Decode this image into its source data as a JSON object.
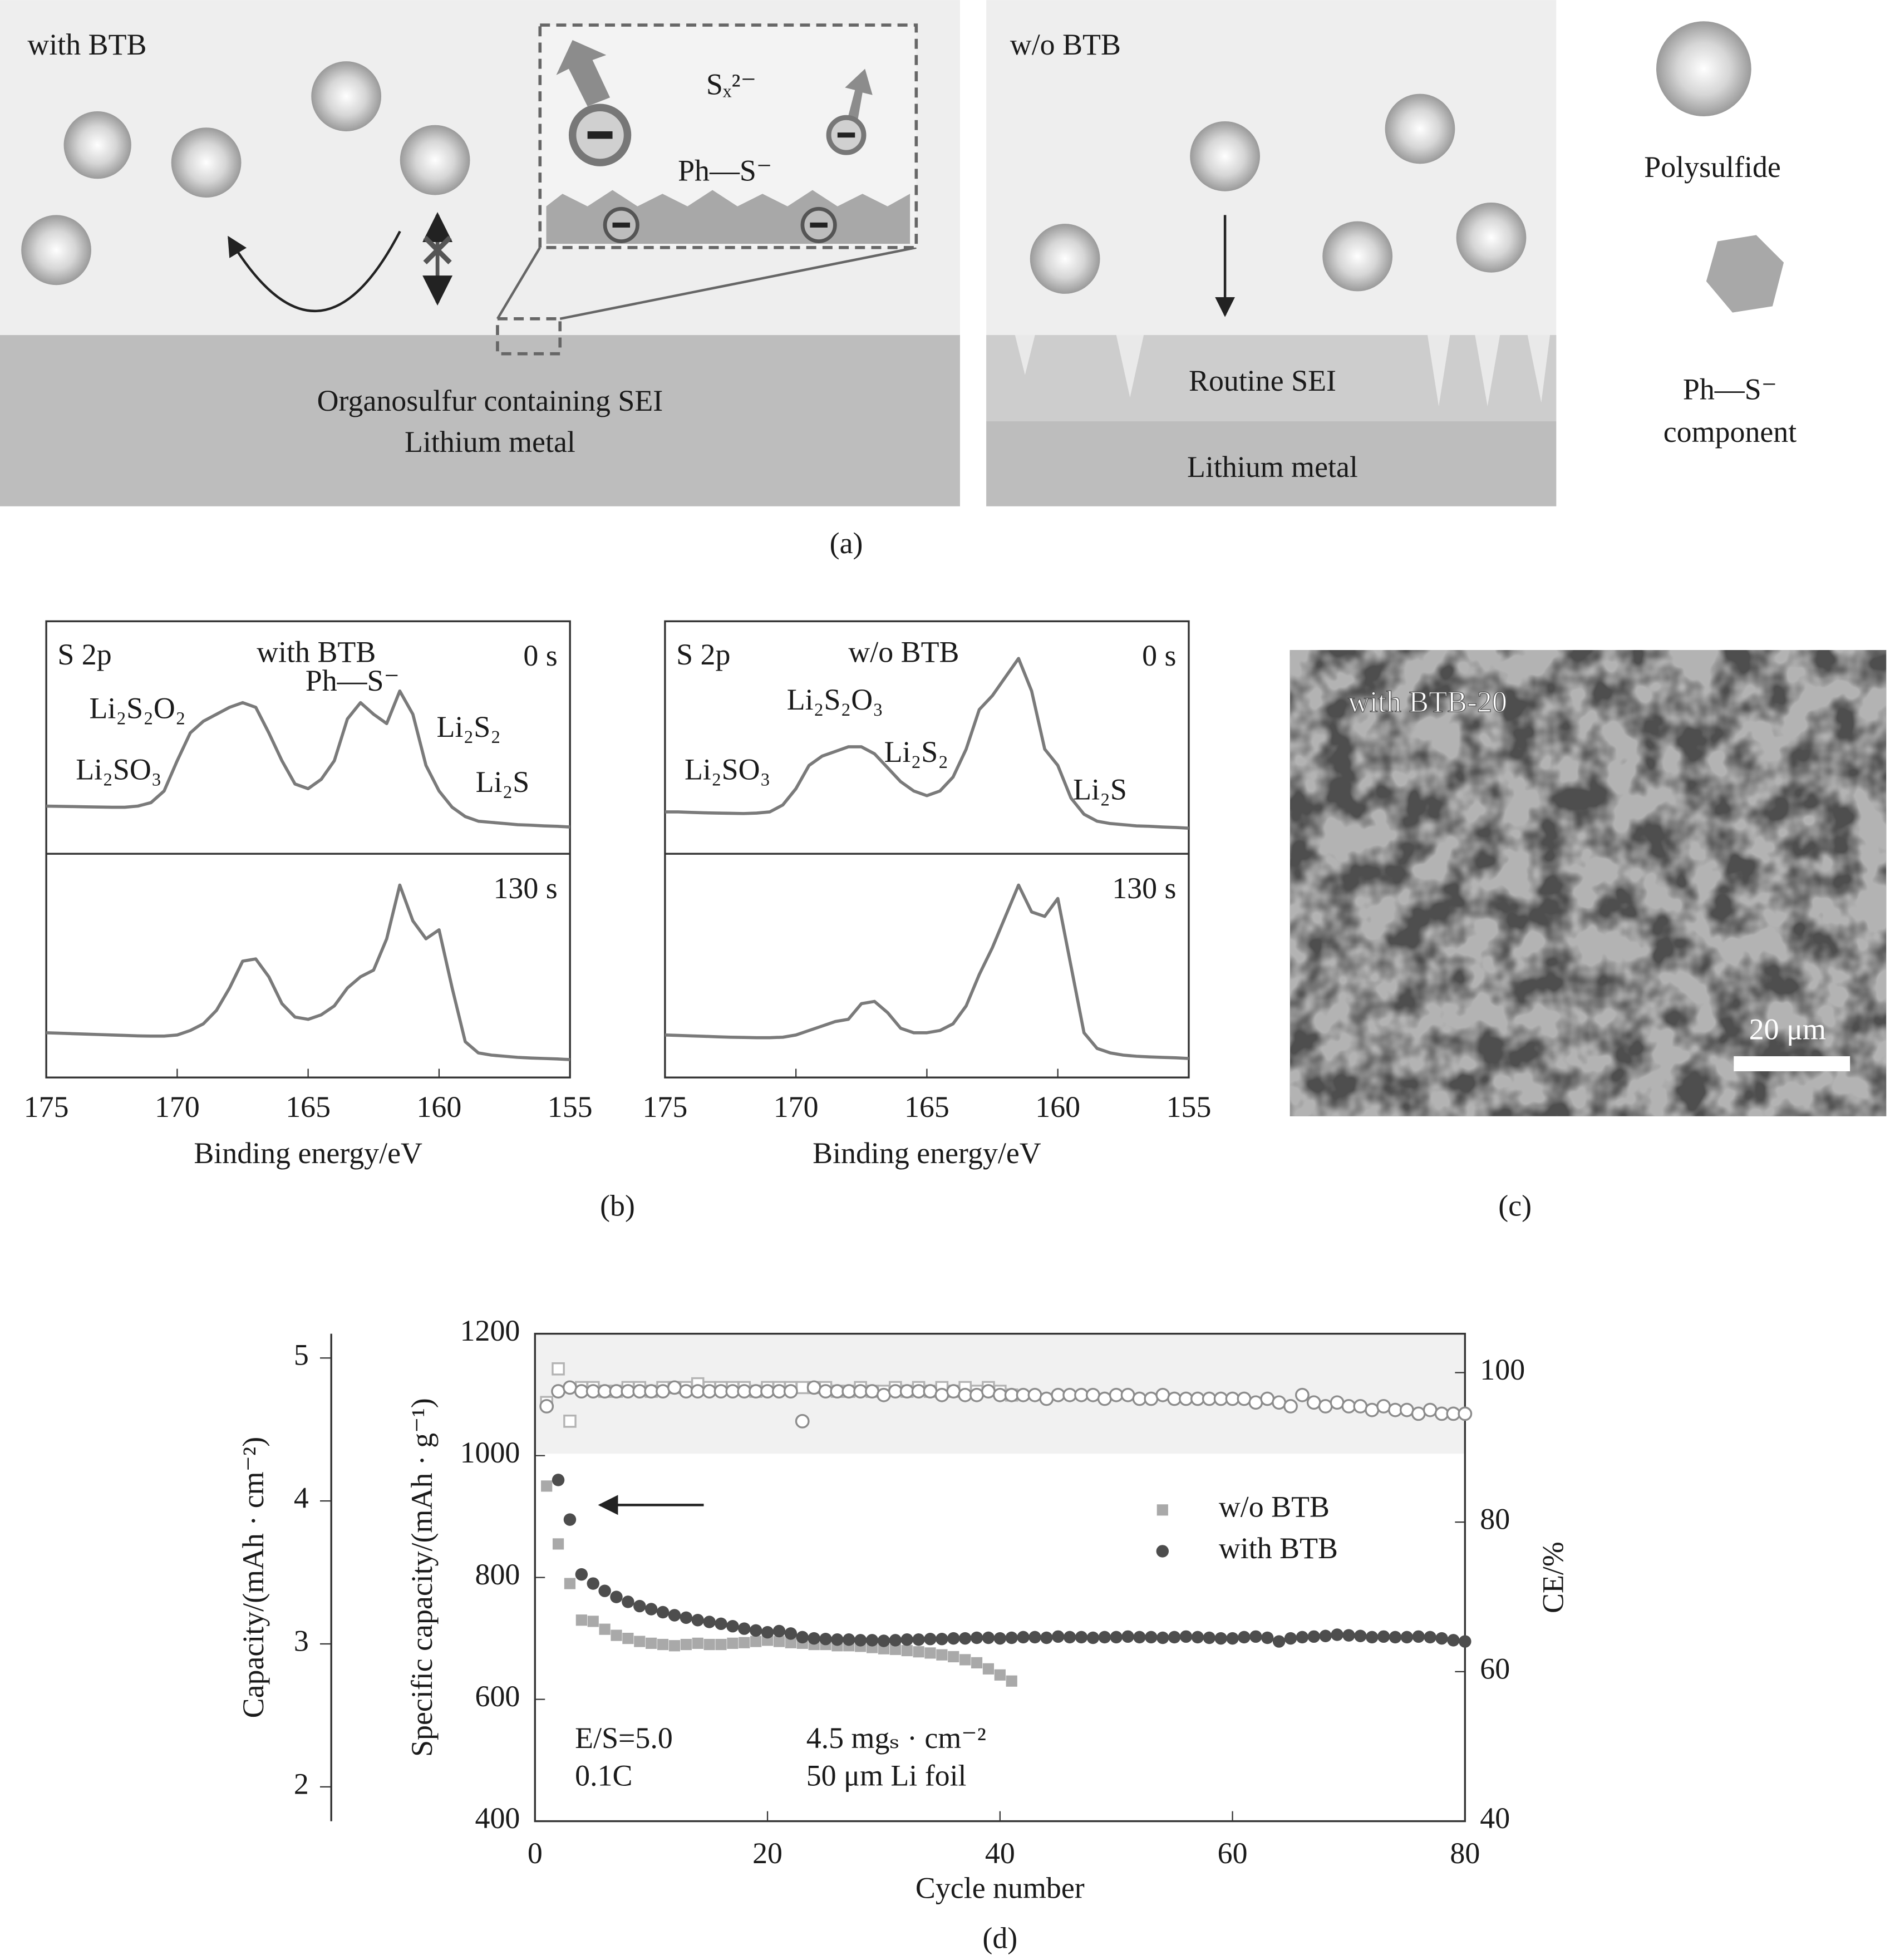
{
  "diagram": {
    "left_label": "with BTB",
    "inset_ion": "Sₓ²⁻",
    "inset_surface": "Ph—S⁻",
    "left_sei": "Organosulfur containing SEI",
    "left_metal": "Lithium metal",
    "right_label": "w/o BTB",
    "right_sei": "Routine SEI",
    "right_metal": "Lithium metal",
    "legend_polysulfide": "Polysulfide",
    "legend_component": [
      "Ph—S⁻",
      "component"
    ],
    "caption": "(a)"
  },
  "panel_b": {
    "caption": "(b)"
  },
  "image": {
    "label": "with BTB-20",
    "scale_bar": "20 μm",
    "caption": "(c)"
  },
  "chart_data": [
    {
      "type": "line",
      "title": "with BTB",
      "label": "S 2p",
      "xlabel": "Binding energy/eV",
      "xlim": [
        175,
        155
      ],
      "xticks": [
        175,
        170,
        165,
        160,
        155
      ],
      "ylim": [
        0,
        100
      ],
      "x": [
        175,
        174.5,
        174,
        173.5,
        173,
        172.5,
        172,
        171.5,
        171,
        170.5,
        170,
        169.5,
        169,
        168.5,
        168,
        167.5,
        167,
        166.5,
        166,
        165.5,
        165,
        164.5,
        164,
        163.5,
        163,
        162.5,
        162,
        161.5,
        161,
        160.5,
        160,
        159.5,
        159,
        158.5,
        158,
        157.5,
        157,
        156.5,
        156,
        155.5,
        155
      ],
      "series": [
        {
          "name": "0 s",
          "color": "#7a7a7a",
          "values": [
            20.5,
            20.4,
            20.3,
            20.2,
            20.1,
            20,
            20,
            20.5,
            22,
            27,
            40,
            52,
            57,
            60,
            63,
            65,
            63,
            52,
            40,
            30,
            28,
            32,
            40,
            58,
            65,
            60,
            56,
            70,
            60,
            38,
            27,
            20,
            16,
            14,
            13.5,
            13,
            12.5,
            12.3,
            12,
            11.8,
            11.5
          ]
        },
        {
          "name": "130 s",
          "color": "#7a7a7a",
          "values": [
            20,
            19.8,
            19.6,
            19.4,
            19.2,
            19,
            18.8,
            18.6,
            18.5,
            18.5,
            19,
            21,
            24,
            30,
            40,
            52,
            53,
            45,
            33,
            27,
            26,
            28,
            32,
            40,
            45,
            48,
            62,
            86,
            70,
            62,
            66,
            40,
            16,
            11,
            10,
            9.5,
            9,
            8.7,
            8.5,
            8.3,
            8
          ]
        }
      ],
      "annotations": [
        "Li₂S₂O₂",
        "Ph—S⁻",
        "Li₂S₂",
        "Li₂SO₃",
        "Li₂S"
      ]
    },
    {
      "type": "line",
      "title": "w/o BTB",
      "label": "S 2p",
      "xlabel": "Binding energy/eV",
      "xlim": [
        175,
        155
      ],
      "xticks": [
        175,
        170,
        165,
        160,
        155
      ],
      "ylim": [
        0,
        100
      ],
      "x": [
        175,
        174.5,
        174,
        173.5,
        173,
        172.5,
        172,
        171.5,
        171,
        170.5,
        170,
        169.5,
        169,
        168.5,
        168,
        167.5,
        167,
        166.5,
        166,
        165.5,
        165,
        164.5,
        164,
        163.5,
        163,
        162.5,
        162,
        161.5,
        161,
        160.5,
        160,
        159.5,
        159,
        158.5,
        158,
        157.5,
        157,
        156.5,
        156,
        155.5,
        155
      ],
      "series": [
        {
          "name": "0 s",
          "color": "#7a7a7a",
          "values": [
            18,
            18,
            17.8,
            17.6,
            17.5,
            17.4,
            17.3,
            17.5,
            18,
            21,
            28,
            38,
            42,
            44,
            46,
            46,
            43,
            37,
            31,
            27,
            25,
            27,
            33,
            45,
            62,
            68,
            76,
            84,
            70,
            45,
            38,
            24,
            17,
            14,
            13,
            12.5,
            12,
            11.8,
            11.5,
            11.3,
            11
          ]
        },
        {
          "name": "130 s",
          "color": "#7a7a7a",
          "values": [
            19,
            18.8,
            18.6,
            18.4,
            18.2,
            18,
            17.9,
            17.8,
            17.8,
            18,
            19,
            21,
            23,
            25,
            26,
            33,
            34,
            29,
            22,
            20,
            20,
            21,
            24,
            32,
            46,
            58,
            72,
            86,
            74,
            72,
            80,
            50,
            20,
            13,
            11,
            10,
            9.5,
            9.2,
            9,
            8.8,
            8.5
          ]
        }
      ],
      "annotations": [
        "Li₂S₂O₃",
        "Li₂S₂",
        "Li₂SO₃",
        "Li₂S"
      ]
    },
    {
      "type": "scatter",
      "xlabel": "Cycle number",
      "ylabel": "Specific capacity/(mAh · g⁻¹)",
      "y2label": "CE/%",
      "y3label": "Capacity/(mAh · cm⁻²)",
      "xlim": [
        0,
        80
      ],
      "xticks": [
        0,
        20,
        40,
        60,
        80
      ],
      "ylim": [
        400,
        1200
      ],
      "yticks": [
        400,
        600,
        800,
        1000,
        1200
      ],
      "y2lim": [
        40,
        105.2
      ],
      "y2ticks": [
        40,
        60,
        80,
        100
      ],
      "y3lim": [
        1.76,
        5.17
      ],
      "y3ticks": [
        2,
        3,
        4,
        5
      ],
      "series": [
        {
          "name": "w/o BTB",
          "color": "#a9a9a9",
          "marker": "square",
          "x": [
            1,
            2,
            3,
            4,
            5,
            6,
            7,
            8,
            9,
            10,
            11,
            12,
            13,
            14,
            15,
            16,
            17,
            18,
            19,
            20,
            21,
            22,
            23,
            24,
            25,
            26,
            27,
            28,
            29,
            30,
            31,
            32,
            33,
            34,
            35,
            36,
            37,
            38,
            39,
            40,
            41
          ],
          "values": [
            950,
            855,
            790,
            730,
            728,
            715,
            705,
            700,
            695,
            692,
            690,
            688,
            690,
            692,
            690,
            690,
            692,
            693,
            695,
            697,
            695,
            693,
            692,
            690,
            690,
            688,
            688,
            687,
            685,
            683,
            682,
            680,
            678,
            676,
            673,
            670,
            665,
            660,
            650,
            640,
            630
          ]
        },
        {
          "name": "with BTB",
          "color": "#4d4d4d",
          "marker": "circle",
          "x": [
            1,
            2,
            3,
            4,
            5,
            6,
            7,
            8,
            9,
            10,
            11,
            12,
            13,
            14,
            15,
            16,
            17,
            18,
            19,
            20,
            21,
            22,
            23,
            24,
            25,
            26,
            27,
            28,
            29,
            30,
            31,
            32,
            33,
            34,
            35,
            36,
            37,
            38,
            39,
            40,
            41,
            42,
            43,
            44,
            45,
            46,
            47,
            48,
            49,
            50,
            51,
            52,
            53,
            54,
            55,
            56,
            57,
            58,
            59,
            60,
            61,
            62,
            63,
            64,
            65,
            66,
            67,
            68,
            69,
            70,
            71,
            72,
            73,
            74,
            75,
            76,
            77,
            78,
            79,
            80
          ],
          "values": [
            null,
            960,
            895,
            805,
            790,
            778,
            768,
            760,
            753,
            748,
            743,
            738,
            734,
            730,
            727,
            724,
            720,
            716,
            713,
            710,
            712,
            708,
            702,
            700,
            699,
            698,
            698,
            697,
            697,
            696,
            697,
            698,
            698,
            699,
            699,
            700,
            700,
            701,
            701,
            700,
            701,
            702,
            702,
            701,
            703,
            702,
            702,
            701,
            702,
            702,
            703,
            702,
            702,
            701,
            702,
            703,
            702,
            701,
            700,
            700,
            702,
            703,
            701,
            695,
            700,
            702,
            703,
            704,
            706,
            705,
            704,
            702,
            703,
            702,
            702,
            703,
            702,
            700,
            697,
            695
          ]
        },
        {
          "axis": "y2",
          "color": "#b3b3b3",
          "marker": "open-square",
          "x": [
            1,
            2,
            3,
            4,
            5,
            6,
            7,
            8,
            9,
            10,
            11,
            12,
            13,
            14,
            15,
            16,
            17,
            18,
            19,
            20,
            21,
            22,
            23,
            24,
            25,
            26,
            27,
            28,
            29,
            30,
            31,
            32,
            33,
            34,
            35,
            36,
            37,
            38,
            39,
            40,
            41
          ],
          "values": [
            96,
            100.5,
            93.5,
            98,
            98,
            97.5,
            97.5,
            98,
            98,
            97.5,
            98,
            98,
            98,
            98.5,
            98,
            98,
            98,
            98,
            97.5,
            98,
            98,
            98,
            98,
            98,
            98,
            97.5,
            97.5,
            98,
            97.5,
            97.5,
            98,
            97.5,
            98,
            97.5,
            98,
            97.5,
            98,
            97.5,
            98,
            97.5,
            97
          ]
        },
        {
          "axis": "y2",
          "color": "#8c8c8c",
          "marker": "open-circle",
          "x": [
            1,
            2,
            3,
            4,
            5,
            6,
            7,
            8,
            9,
            10,
            11,
            12,
            13,
            14,
            15,
            16,
            17,
            18,
            19,
            20,
            21,
            22,
            23,
            24,
            25,
            26,
            27,
            28,
            29,
            30,
            31,
            32,
            33,
            34,
            35,
            36,
            37,
            38,
            39,
            40,
            41,
            42,
            43,
            44,
            45,
            46,
            47,
            48,
            49,
            50,
            51,
            52,
            53,
            54,
            55,
            56,
            57,
            58,
            59,
            60,
            61,
            62,
            63,
            64,
            65,
            66,
            67,
            68,
            69,
            70,
            71,
            72,
            73,
            74,
            75,
            76,
            77,
            78,
            79,
            80
          ],
          "values": [
            95.5,
            97.5,
            98,
            97.5,
            97.5,
            97.5,
            97.5,
            97.5,
            97.5,
            97.5,
            97.5,
            98,
            97.5,
            97.5,
            97.5,
            97.5,
            97.5,
            97.5,
            97.5,
            97.5,
            97.5,
            97.5,
            93.5,
            98,
            97.5,
            97.5,
            97.5,
            97.5,
            97.5,
            97,
            97.5,
            97.5,
            97.5,
            97.5,
            97,
            97.5,
            97,
            97,
            97.5,
            97,
            97,
            97,
            97,
            96.5,
            97,
            97,
            97,
            97,
            96.5,
            97,
            97,
            96.5,
            96.5,
            97,
            96.5,
            96.5,
            96.5,
            96.5,
            96.5,
            96.5,
            96.5,
            96,
            96.5,
            96,
            95.5,
            97,
            96,
            95.5,
            96,
            95.5,
            95.5,
            95,
            95.5,
            95,
            95,
            94.5,
            95,
            94.5,
            94.5,
            94.5
          ]
        }
      ],
      "annotations": [
        "E/S=5.0",
        "0.1C",
        "4.5 mgₛ · cm⁻²",
        "50 μm Li foil"
      ],
      "caption": "(d)"
    }
  ]
}
